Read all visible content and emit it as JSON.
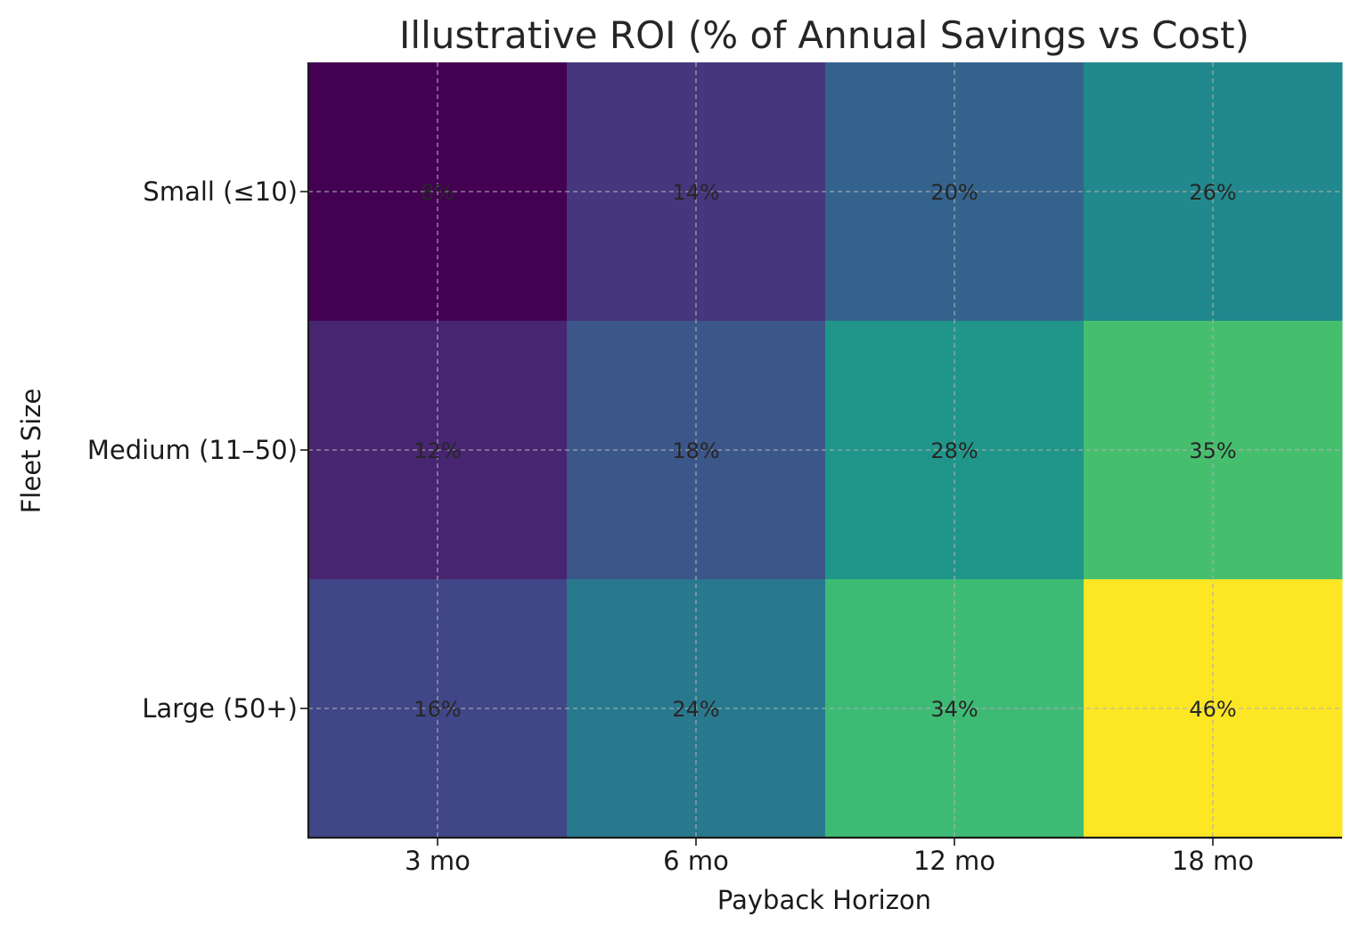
{
  "chart_data": {
    "type": "heatmap",
    "title": "Illustrative ROI (% of Annual Savings vs Cost)",
    "xlabel": "Payback Horizon",
    "ylabel": "Fleet Size",
    "x_categories": [
      "3 mo",
      "6 mo",
      "12 mo",
      "18 mo"
    ],
    "y_categories": [
      "Small (≤10)",
      "Medium (11–50)",
      "Large (50+)"
    ],
    "values": [
      [
        8,
        14,
        20,
        26
      ],
      [
        12,
        18,
        28,
        35
      ],
      [
        16,
        24,
        34,
        46
      ]
    ],
    "cell_labels": [
      [
        "8%",
        "14%",
        "20%",
        "26%"
      ],
      [
        "12%",
        "18%",
        "28%",
        "35%"
      ],
      [
        "16%",
        "24%",
        "34%",
        "46%"
      ]
    ],
    "colormap": "viridis",
    "grid": true,
    "colors": {
      "Small (≤10)": [
        "#440154",
        "#46367e",
        "#33638d",
        "#21898d"
      ],
      "Medium (11–50)": [
        "#482571",
        "#3b5688",
        "#20968b",
        "#45bf6e"
      ],
      "Large (50+)": [
        "#404687",
        "#29798e",
        "#3dbb75",
        "#fde725"
      ]
    }
  }
}
